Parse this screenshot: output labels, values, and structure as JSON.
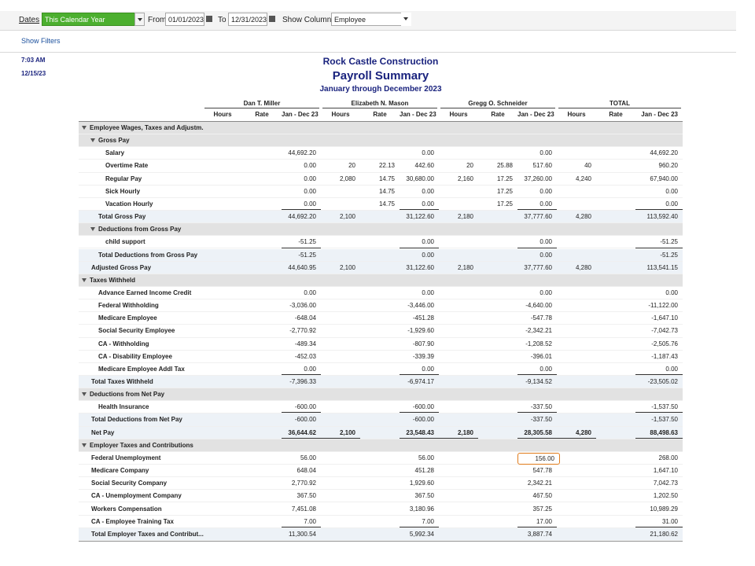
{
  "toolbar": {
    "dates_label": "Dates",
    "dates_value": "This Calendar Year",
    "from_label": "From",
    "from_value": "01/01/2023",
    "to_label": "To",
    "to_value": "12/31/2023",
    "show_columns_label": "Show Columns",
    "show_columns_value": "Employee"
  },
  "show_filters": "Show Filters",
  "print_time": "7:03 AM",
  "print_date": "12/15/23",
  "report": {
    "company": "Rock Castle Construction",
    "title": "Payroll Summary",
    "subtitle": "January through December 2023",
    "employees": [
      "Dan T. Miller",
      "Elizabeth N. Mason",
      "Gregg O. Schneider",
      "TOTAL"
    ],
    "subcolumns": [
      "Hours",
      "Rate",
      "Jan - Dec 23"
    ],
    "rows": [
      {
        "label": "Employee Wages, Taxes and Adjustm."
      },
      {
        "label": "Gross Pay"
      },
      {
        "label": "Salary",
        "cells": [
          null,
          null,
          "44,692.20",
          null,
          null,
          "0.00",
          null,
          null,
          "0.00",
          null,
          null,
          "44,692.20"
        ]
      },
      {
        "label": "Overtime Rate",
        "cells": [
          null,
          null,
          "0.00",
          "20",
          "22.13",
          "442.60",
          "20",
          "25.88",
          "517.60",
          "40",
          null,
          "960.20"
        ]
      },
      {
        "label": "Regular Pay",
        "cells": [
          null,
          null,
          "0.00",
          "2,080",
          "14.75",
          "30,680.00",
          "2,160",
          "17.25",
          "37,260.00",
          "4,240",
          null,
          "67,940.00"
        ]
      },
      {
        "label": "Sick Hourly",
        "cells": [
          null,
          null,
          "0.00",
          null,
          "14.75",
          "0.00",
          null,
          "17.25",
          "0.00",
          null,
          null,
          "0.00"
        ]
      },
      {
        "label": "Vacation Hourly",
        "cells": [
          null,
          null,
          "0.00",
          null,
          "14.75",
          "0.00",
          null,
          "17.25",
          "0.00",
          null,
          null,
          "0.00"
        ]
      },
      {
        "label": "Total Gross Pay",
        "cells": [
          null,
          null,
          "44,692.20",
          "2,100",
          null,
          "31,122.60",
          "2,180",
          null,
          "37,777.60",
          "4,280",
          null,
          "113,592.40"
        ]
      },
      {
        "label": "Deductions from Gross Pay"
      },
      {
        "label": "child support",
        "cells": [
          null,
          null,
          "-51.25",
          null,
          null,
          "0.00",
          null,
          null,
          "0.00",
          null,
          null,
          "-51.25"
        ]
      },
      {
        "label": "Total Deductions from Gross Pay",
        "cells": [
          null,
          null,
          "-51.25",
          null,
          null,
          "0.00",
          null,
          null,
          "0.00",
          null,
          null,
          "-51.25"
        ]
      },
      {
        "label": "Adjusted Gross Pay",
        "cells": [
          null,
          null,
          "44,640.95",
          "2,100",
          null,
          "31,122.60",
          "2,180",
          null,
          "37,777.60",
          "4,280",
          null,
          "113,541.15"
        ]
      },
      {
        "label": "Taxes Withheld"
      },
      {
        "label": "Advance Earned Income Credit",
        "cells": [
          null,
          null,
          "0.00",
          null,
          null,
          "0.00",
          null,
          null,
          "0.00",
          null,
          null,
          "0.00"
        ]
      },
      {
        "label": "Federal Withholding",
        "cells": [
          null,
          null,
          "-3,036.00",
          null,
          null,
          "-3,446.00",
          null,
          null,
          "-4,640.00",
          null,
          null,
          "-11,122.00"
        ]
      },
      {
        "label": "Medicare Employee",
        "cells": [
          null,
          null,
          "-648.04",
          null,
          null,
          "-451.28",
          null,
          null,
          "-547.78",
          null,
          null,
          "-1,647.10"
        ]
      },
      {
        "label": "Social Security Employee",
        "cells": [
          null,
          null,
          "-2,770.92",
          null,
          null,
          "-1,929.60",
          null,
          null,
          "-2,342.21",
          null,
          null,
          "-7,042.73"
        ]
      },
      {
        "label": "CA - Withholding",
        "cells": [
          null,
          null,
          "-489.34",
          null,
          null,
          "-807.90",
          null,
          null,
          "-1,208.52",
          null,
          null,
          "-2,505.76"
        ]
      },
      {
        "label": "CA - Disability Employee",
        "cells": [
          null,
          null,
          "-452.03",
          null,
          null,
          "-339.39",
          null,
          null,
          "-396.01",
          null,
          null,
          "-1,187.43"
        ]
      },
      {
        "label": "Medicare Employee Addl Tax",
        "cells": [
          null,
          null,
          "0.00",
          null,
          null,
          "0.00",
          null,
          null,
          "0.00",
          null,
          null,
          "0.00"
        ]
      },
      {
        "label": "Total Taxes Withheld",
        "cells": [
          null,
          null,
          "-7,396.33",
          null,
          null,
          "-6,974.17",
          null,
          null,
          "-9,134.52",
          null,
          null,
          "-23,505.02"
        ]
      },
      {
        "label": "Deductions from Net Pay"
      },
      {
        "label": "Health Insurance",
        "cells": [
          null,
          null,
          "-600.00",
          null,
          null,
          "-600.00",
          null,
          null,
          "-337.50",
          null,
          null,
          "-1,537.50"
        ]
      },
      {
        "label": "Total Deductions from Net Pay",
        "cells": [
          null,
          null,
          "-600.00",
          null,
          null,
          "-600.00",
          null,
          null,
          "-337.50",
          null,
          null,
          "-1,537.50"
        ]
      },
      {
        "label": "Net Pay",
        "cells": [
          null,
          null,
          "36,644.62",
          "2,100",
          null,
          "23,548.43",
          "2,180",
          null,
          "28,305.58",
          "4,280",
          null,
          "88,498.63"
        ]
      },
      {
        "label": "Employer Taxes and Contributions"
      },
      {
        "label": "Federal Unemployment",
        "cells": [
          null,
          null,
          "56.00",
          null,
          null,
          "56.00",
          null,
          null,
          "156.00",
          null,
          null,
          "268.00"
        ]
      },
      {
        "label": "Medicare Company",
        "cells": [
          null,
          null,
          "648.04",
          null,
          null,
          "451.28",
          null,
          null,
          "547.78",
          null,
          null,
          "1,647.10"
        ]
      },
      {
        "label": "Social Security Company",
        "cells": [
          null,
          null,
          "2,770.92",
          null,
          null,
          "1,929.60",
          null,
          null,
          "2,342.21",
          null,
          null,
          "7,042.73"
        ]
      },
      {
        "label": "CA - Unemployment Company",
        "cells": [
          null,
          null,
          "367.50",
          null,
          null,
          "367.50",
          null,
          null,
          "467.50",
          null,
          null,
          "1,202.50"
        ]
      },
      {
        "label": "Workers Compensation",
        "cells": [
          null,
          null,
          "7,451.08",
          null,
          null,
          "3,180.96",
          null,
          null,
          "357.25",
          null,
          null,
          "10,989.29"
        ]
      },
      {
        "label": "CA - Employee Training Tax",
        "cells": [
          null,
          null,
          "7.00",
          null,
          null,
          "7.00",
          null,
          null,
          "17.00",
          null,
          null,
          "31.00"
        ]
      },
      {
        "label": "Total Employer Taxes and Contribut...",
        "cells": [
          null,
          null,
          "11,300.54",
          null,
          null,
          "5,992.34",
          null,
          null,
          "3,887.74",
          null,
          null,
          "21,180.62"
        ]
      }
    ]
  }
}
